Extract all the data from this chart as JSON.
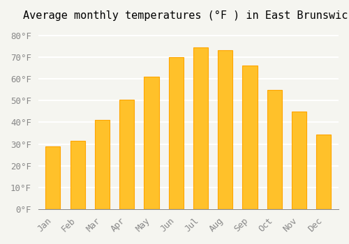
{
  "title": "Average monthly temperatures (°F ) in East Brunswick",
  "months": [
    "Jan",
    "Feb",
    "Mar",
    "Apr",
    "May",
    "Jun",
    "Jul",
    "Aug",
    "Sep",
    "Oct",
    "Nov",
    "Dec"
  ],
  "values": [
    29,
    31.5,
    41,
    50.5,
    61,
    70,
    74.5,
    73,
    66,
    55,
    45,
    34.5
  ],
  "bar_color": "#FFC12A",
  "bar_edge_color": "#FFA500",
  "background_color": "#F5F5F0",
  "grid_color": "#FFFFFF",
  "ylim": [
    0,
    84
  ],
  "yticks": [
    0,
    10,
    20,
    30,
    40,
    50,
    60,
    70,
    80
  ],
  "ytick_labels": [
    "0°F",
    "10°F",
    "20°F",
    "30°F",
    "40°F",
    "50°F",
    "60°F",
    "70°F",
    "80°F"
  ],
  "title_fontsize": 11,
  "tick_fontsize": 9,
  "font_family": "monospace"
}
